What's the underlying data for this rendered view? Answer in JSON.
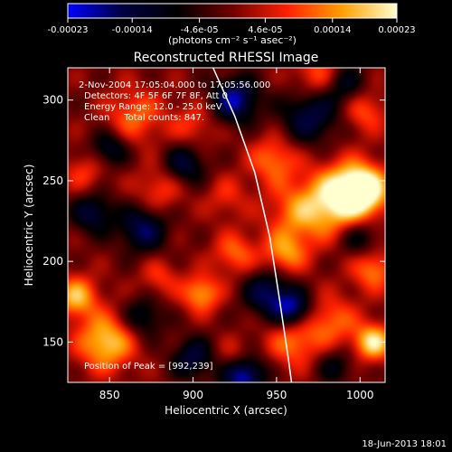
{
  "chart_data": {
    "type": "heatmap",
    "title": "Reconstructed RHESSI Image",
    "xlabel": "Heliocentric X (arcsec)",
    "ylabel": "Heliocentric Y (arcsec)",
    "xlim": [
      825,
      1015
    ],
    "ylim": [
      125,
      320
    ],
    "xticks": [
      850,
      900,
      950,
      1000
    ],
    "yticks": [
      150,
      200,
      250,
      300
    ],
    "colorbar": {
      "min": -0.00023,
      "max": 0.00023,
      "ticks": [
        -0.00023,
        -0.00014,
        -4.6e-05,
        4.6e-05,
        0.00014,
        0.00023
      ],
      "tick_labels": [
        "-0.00023",
        "-0.00014",
        "-4.6e-05",
        "4.6e-05",
        "0.00014",
        "0.00023"
      ],
      "label": "(photons cm⁻² s⁻¹ asec⁻²)",
      "colors": [
        "#0000ff",
        "#000040",
        "#000000",
        "#700000",
        "#ff2000",
        "#ffa000",
        "#ffffd0"
      ]
    },
    "annotations": {
      "time_range": "2-Nov-2004 17:05:04.000 to 17:05:56.000",
      "detectors": "Detectors: 4F 5F 6F 7F 8F, Att 0",
      "energy_range": "Energy Range: 12.0 - 25.0 keV",
      "clean_counts": "Clean     Total counts: 847.",
      "peak": "Position of Peak = [992,239]"
    },
    "peak_position": [
      992,
      239
    ],
    "limb_curve": [
      [
        912,
        320
      ],
      [
        925,
        290
      ],
      [
        937,
        255
      ],
      [
        946,
        215
      ],
      [
        952,
        175
      ],
      [
        957,
        140
      ],
      [
        959,
        125
      ]
    ],
    "sources": [
      {
        "x": 991,
        "y": 240,
        "r": 14,
        "v": 1.0
      },
      {
        "x": 1002,
        "y": 245,
        "r": 10,
        "v": 0.9
      },
      {
        "x": 965,
        "y": 230,
        "r": 14,
        "v": 0.6
      },
      {
        "x": 948,
        "y": 263,
        "r": 10,
        "v": 0.55
      },
      {
        "x": 1003,
        "y": 293,
        "r": 9,
        "v": 0.45
      },
      {
        "x": 975,
        "y": 315,
        "r": 10,
        "v": 0.5
      },
      {
        "x": 1008,
        "y": 195,
        "r": 9,
        "v": 0.6
      },
      {
        "x": 983,
        "y": 163,
        "r": 11,
        "v": 0.5
      },
      {
        "x": 1008,
        "y": 150,
        "r": 8,
        "v": 0.9
      },
      {
        "x": 960,
        "y": 150,
        "r": 11,
        "v": 0.55
      },
      {
        "x": 955,
        "y": 205,
        "r": 9,
        "v": 0.6
      },
      {
        "x": 925,
        "y": 205,
        "r": 9,
        "v": 0.5
      },
      {
        "x": 905,
        "y": 180,
        "r": 8,
        "v": 0.7
      },
      {
        "x": 848,
        "y": 150,
        "r": 12,
        "v": 0.85
      },
      {
        "x": 830,
        "y": 178,
        "r": 9,
        "v": 0.75
      },
      {
        "x": 865,
        "y": 290,
        "r": 12,
        "v": 0.5
      },
      {
        "x": 900,
        "y": 285,
        "r": 10,
        "v": 0.35
      },
      {
        "x": 880,
        "y": 245,
        "r": 10,
        "v": 0.4
      },
      {
        "x": 835,
        "y": 255,
        "r": 9,
        "v": 0.35
      },
      {
        "x": 920,
        "y": 240,
        "r": 9,
        "v": 0.3
      },
      {
        "x": 925,
        "y": 140,
        "r": 8,
        "v": 0.4
      },
      {
        "x": 880,
        "y": 190,
        "r": 8,
        "v": 0.35
      },
      {
        "x": 900,
        "y": 140,
        "r": 9,
        "v": -0.6
      },
      {
        "x": 930,
        "y": 130,
        "r": 9,
        "v": -1.0
      },
      {
        "x": 870,
        "y": 220,
        "r": 10,
        "v": -0.7
      },
      {
        "x": 895,
        "y": 260,
        "r": 9,
        "v": -0.6
      },
      {
        "x": 840,
        "y": 230,
        "r": 9,
        "v": -0.6
      },
      {
        "x": 925,
        "y": 300,
        "r": 10,
        "v": -0.85
      },
      {
        "x": 970,
        "y": 290,
        "r": 12,
        "v": -0.65
      },
      {
        "x": 945,
        "y": 180,
        "r": 10,
        "v": -0.7
      },
      {
        "x": 960,
        "y": 170,
        "r": 8,
        "v": -0.8
      },
      {
        "x": 1000,
        "y": 215,
        "r": 9,
        "v": -0.5
      },
      {
        "x": 990,
        "y": 310,
        "r": 9,
        "v": -0.5
      },
      {
        "x": 870,
        "y": 165,
        "r": 9,
        "v": -0.5
      },
      {
        "x": 850,
        "y": 270,
        "r": 8,
        "v": -0.55
      },
      {
        "x": 985,
        "y": 135,
        "r": 8,
        "v": -0.4
      }
    ]
  },
  "footer": {
    "timestamp": "18-Jun-2013 18:01"
  }
}
